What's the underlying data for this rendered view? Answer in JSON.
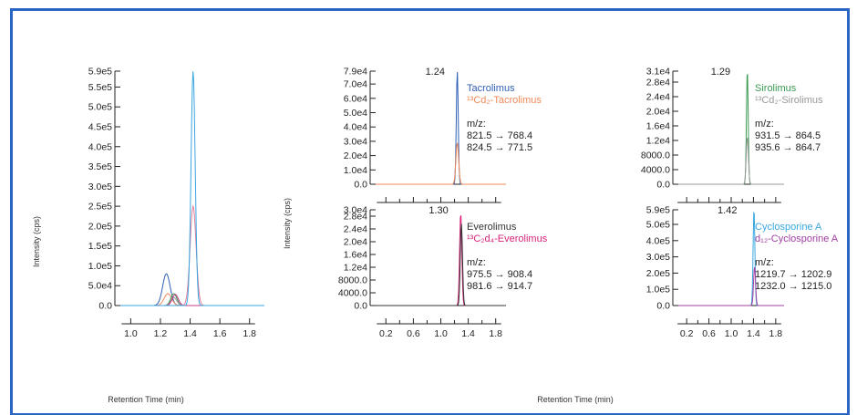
{
  "figure": {
    "left_ylabel": "Intensity (cps)",
    "mid_ylabel": "Intensity (cps)",
    "left_xlabel": "Retention Time (min)",
    "right_xlabel": "Retention Time (min)",
    "border_color": "#2a64c4"
  },
  "chart_data": [
    {
      "type": "line",
      "ylabel": "Intensity (cps)",
      "xlabel": "Retention Time (min)",
      "xlim": [
        0.93,
        1.9
      ],
      "ylim": [
        0,
        590000
      ],
      "xticks": [
        1.0,
        1.2,
        1.4,
        1.6,
        1.8
      ],
      "xtick_labels": [
        "1.0",
        "1.2",
        "1.4",
        "1.6",
        "1.8"
      ],
      "yticks": [
        0,
        50000,
        100000,
        150000,
        200000,
        250000,
        300000,
        350000,
        400000,
        450000,
        500000,
        550000,
        590000
      ],
      "ytick_labels": [
        "0.0",
        "5.0e4",
        "1.0e5",
        "1.5e5",
        "2.0e5",
        "2.5e5",
        "3.0e5",
        "3.5e5",
        "4.0e5",
        "4.5e5",
        "5.0e5",
        "5.5e5",
        "5.9e5"
      ],
      "series": [
        {
          "color": "#2f5fb5",
          "peaks": [
            {
              "x": 1.24,
              "y": 80000,
              "w": 0.025
            }
          ]
        },
        {
          "color": "#f08a5a",
          "peaks": [
            {
              "x": 1.25,
              "y": 30000,
              "w": 0.025
            }
          ]
        },
        {
          "color": "#3a9a52",
          "peaks": [
            {
              "x": 1.29,
              "y": 30000,
              "w": 0.02
            }
          ]
        },
        {
          "color": "#999999",
          "peaks": [
            {
              "x": 1.29,
              "y": 20000,
              "w": 0.02
            }
          ]
        },
        {
          "color": "#c8378a",
          "peaks": [
            {
              "x": 1.3,
              "y": 28000,
              "w": 0.02
            }
          ]
        },
        {
          "color": "#e07b9b",
          "peaks": [
            {
              "x": 1.42,
              "y": 250000,
              "w": 0.02
            }
          ]
        },
        {
          "color": "#39a7e0",
          "peaks": [
            {
              "x": 1.42,
              "y": 590000,
              "w": 0.014
            }
          ]
        }
      ]
    },
    {
      "type": "line",
      "xlim": [
        0.05,
        1.95
      ],
      "ylim": [
        0,
        79000
      ],
      "xticks": [
        0.2,
        0.6,
        1.0,
        1.4,
        1.8
      ],
      "xtick_labels": [],
      "minor_xticks": [
        0.4,
        0.8,
        1.2,
        1.6
      ],
      "yticks": [
        0,
        10000,
        20000,
        30000,
        40000,
        50000,
        60000,
        70000,
        79000
      ],
      "ytick_labels": [
        "0.0",
        "1.0e4",
        "2.0e4",
        "3.0e4",
        "4.0e4",
        "5.0e4",
        "6.0e4",
        "7.0e4",
        "7.9e4"
      ],
      "peak_label": "1.24",
      "legend": [
        "Tacrolimus",
        "¹³Cd₂-Tacrolimus"
      ],
      "legend_colors": [
        "#2f5fb5",
        "#f08a5a"
      ],
      "mz": [
        "m/z:",
        "821.5 → 768.4",
        "824.5 → 771.5"
      ],
      "series": [
        {
          "color": "#2f5fb5",
          "peaks": [
            {
              "x": 1.24,
              "y": 79000,
              "w": 0.014
            }
          ]
        },
        {
          "color": "#f08a5a",
          "peaks": [
            {
              "x": 1.24,
              "y": 29000,
              "w": 0.02
            }
          ]
        }
      ]
    },
    {
      "type": "line",
      "xlim": [
        0.05,
        1.95
      ],
      "ylim": [
        0,
        31000
      ],
      "xticks": [
        0.2,
        0.6,
        1.0,
        1.4,
        1.8
      ],
      "xtick_labels": [],
      "minor_xticks": [
        0.4,
        0.8,
        1.2,
        1.6
      ],
      "yticks": [
        0,
        4000,
        8000,
        12000,
        16000,
        20000,
        24000,
        28000,
        31000
      ],
      "ytick_labels": [
        "0.0",
        "4000.0",
        "8000.0",
        "1.2e4",
        "1.6e4",
        "2.0e4",
        "2.4e4",
        "2.8e4",
        "3.1e4"
      ],
      "peak_label": "1.29",
      "legend": [
        "Sirolimus",
        "¹³Cd₂-Sirolimus"
      ],
      "legend_colors": [
        "#3a9a52",
        "#999999"
      ],
      "mz": [
        "m/z:",
        "931.5 → 864.5",
        "935.6 → 864.7"
      ],
      "series": [
        {
          "color": "#3a9a52",
          "peaks": [
            {
              "x": 1.29,
              "y": 31000,
              "w": 0.016
            }
          ]
        },
        {
          "color": "#999999",
          "peaks": [
            {
              "x": 1.29,
              "y": 12800,
              "w": 0.02
            }
          ]
        }
      ]
    },
    {
      "type": "line",
      "ylabel": "Intensity (cps)",
      "xlim": [
        0.05,
        1.95
      ],
      "ylim": [
        0,
        30000
      ],
      "xticks": [
        0.2,
        0.6,
        1.0,
        1.4,
        1.8
      ],
      "xtick_labels": [
        "0.2",
        "0.6",
        "1.0",
        "1.4",
        "1.8"
      ],
      "minor_xticks": [
        0.4,
        0.8,
        1.2,
        1.6
      ],
      "yticks": [
        0,
        4000,
        8000,
        12000,
        16000,
        20000,
        24000,
        28000,
        30000
      ],
      "ytick_labels": [
        "0.0",
        "4000.0",
        "8000.0",
        "1.2e4",
        "1.6e4",
        "2.0e4",
        "2.4e4",
        "2.8e4",
        "3.0e4"
      ],
      "peak_label": "1.30",
      "legend": [
        "Everolimus",
        "¹³C₂d₄-Everolimus"
      ],
      "legend_colors": [
        "#333333",
        "#d6247a"
      ],
      "mz": [
        "m/z:",
        "975.5 → 908.4",
        "981.6 → 914.7"
      ],
      "series": [
        {
          "color": "#d6247a",
          "peaks": [
            {
              "x": 1.29,
              "y": 29000,
              "w": 0.016
            }
          ]
        },
        {
          "color": "#333333",
          "peaks": [
            {
              "x": 1.3,
              "y": 25800,
              "w": 0.016
            }
          ]
        }
      ]
    },
    {
      "type": "line",
      "xlabel": "Retention Time (min)",
      "xlim": [
        0.05,
        1.95
      ],
      "ylim": [
        0,
        590000
      ],
      "xticks": [
        0.2,
        0.6,
        1.0,
        1.4,
        1.8
      ],
      "xtick_labels": [
        "0.2",
        "0.6",
        "1.0",
        "1.4",
        "1.8"
      ],
      "minor_xticks": [
        0.4,
        0.8,
        1.2,
        1.6
      ],
      "yticks": [
        0,
        100000,
        200000,
        300000,
        400000,
        500000,
        590000
      ],
      "ytick_labels": [
        "0.0",
        "1.0e5",
        "2.0e5",
        "3.0e5",
        "4.0e5",
        "5.0e5",
        "5.9e5"
      ],
      "peak_label": "1.42",
      "legend": [
        "Cyclosporine A",
        "d₁₂-Cyclosporine A"
      ],
      "legend_colors": [
        "#39a7e0",
        "#a03fa0"
      ],
      "mz": [
        "m/z:",
        "1219.7 → 1202.9",
        "1232.0 → 1215.0"
      ],
      "series": [
        {
          "color": "#39a7e0",
          "peaks": [
            {
              "x": 1.41,
              "y": 590000,
              "w": 0.016
            }
          ]
        },
        {
          "color": "#a03fa0",
          "peaks": [
            {
              "x": 1.42,
              "y": 240000,
              "w": 0.018
            }
          ]
        }
      ]
    }
  ]
}
